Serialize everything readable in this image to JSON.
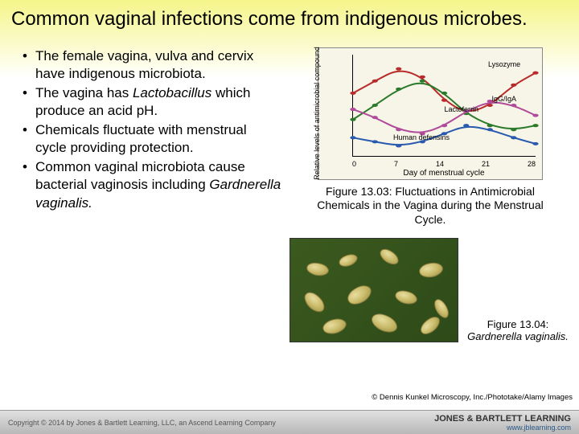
{
  "title": "Common vaginal infections come from indigenous microbes.",
  "bullets": [
    {
      "pre": " The female vagina, vulva and cervix have indigenous microbiota.",
      "italic": "",
      "post": ""
    },
    {
      "pre": "The vagina has ",
      "italic": "Lactobacillus",
      "post": " which produce an acid pH."
    },
    {
      "pre": "Chemicals fluctuate with menstrual cycle providing protection.",
      "italic": "",
      "post": ""
    },
    {
      "pre": "Common vaginal microbiota cause bacterial vaginosis including ",
      "italic": "Gardnerella vaginalis.",
      "post": ""
    }
  ],
  "chart": {
    "ylabel": "Relative levels of antimicrobial compound",
    "xlabel": "Day of menstrual cycle",
    "xticks": [
      "0",
      "7",
      "14",
      "21",
      "28"
    ],
    "series": [
      {
        "name": "Lysozyme",
        "color": "#b92b2b",
        "points": [
          [
            0,
            0.62
          ],
          [
            0.12,
            0.74
          ],
          [
            0.25,
            0.86
          ],
          [
            0.38,
            0.78
          ],
          [
            0.5,
            0.55
          ],
          [
            0.62,
            0.42
          ],
          [
            0.75,
            0.5
          ],
          [
            0.88,
            0.7
          ],
          [
            1,
            0.82
          ]
        ]
      },
      {
        "name": "IgG/IgA",
        "color": "#2a7a2a",
        "points": [
          [
            0,
            0.36
          ],
          [
            0.12,
            0.5
          ],
          [
            0.25,
            0.66
          ],
          [
            0.38,
            0.74
          ],
          [
            0.5,
            0.62
          ],
          [
            0.62,
            0.42
          ],
          [
            0.75,
            0.3
          ],
          [
            0.88,
            0.26
          ],
          [
            1,
            0.3
          ]
        ]
      },
      {
        "name": "Lactoferrin",
        "color": "#b04a9a",
        "points": [
          [
            0,
            0.46
          ],
          [
            0.12,
            0.38
          ],
          [
            0.25,
            0.26
          ],
          [
            0.38,
            0.22
          ],
          [
            0.5,
            0.3
          ],
          [
            0.62,
            0.44
          ],
          [
            0.75,
            0.54
          ],
          [
            0.88,
            0.5
          ],
          [
            1,
            0.4
          ]
        ]
      },
      {
        "name": "Human defensins",
        "color": "#2a5ab0",
        "points": [
          [
            0,
            0.18
          ],
          [
            0.12,
            0.14
          ],
          [
            0.25,
            0.1
          ],
          [
            0.38,
            0.14
          ],
          [
            0.5,
            0.22
          ],
          [
            0.62,
            0.3
          ],
          [
            0.75,
            0.26
          ],
          [
            0.88,
            0.18
          ],
          [
            1,
            0.12
          ]
        ]
      }
    ],
    "legend_positions": {
      "Lysozyme": {
        "x": "74%",
        "y": "6%"
      },
      "IgG/IgA": {
        "x": "76%",
        "y": "40%"
      },
      "Lactoferrin": {
        "x": "50%",
        "y": "50%"
      },
      "Human defensins": {
        "x": "22%",
        "y": "78%"
      }
    }
  },
  "fig1_caption": "Figure 13.03: Fluctuations in Antimicrobial Chemicals in the Vagina during the Menstrual Cycle.",
  "fig2_caption_pre": "Figure 13.04: ",
  "fig2_caption_italic": "Gardnerella vaginalis.",
  "credit": "© Dennis Kunkel Microscopy, Inc./Phototake/Alamy Images",
  "footer_copyright": "Copyright © 2014 by Jones & Bartlett Learning, LLC, an Ascend Learning Company",
  "footer_url": "www.jblearning.com",
  "footer_brand": "JONES & BARTLETT LEARNING"
}
